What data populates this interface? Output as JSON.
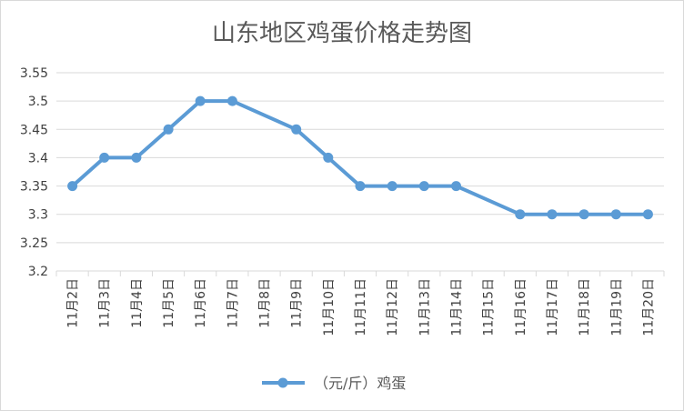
{
  "chart_data": {
    "type": "line",
    "title": "山东地区鸡蛋价格走势图",
    "categories": [
      "11月2日",
      "11月3日",
      "11月4日",
      "11月5日",
      "11月6日",
      "11月7日",
      "11月8日",
      "11月9日",
      "11月10日",
      "11月11日",
      "11月12日",
      "11月13日",
      "11月14日",
      "11月15日",
      "11月16日",
      "11月17日",
      "11月18日",
      "11月19日",
      "11月20日"
    ],
    "series": [
      {
        "name": "（元/斤）鸡蛋",
        "values": [
          3.35,
          3.4,
          3.4,
          3.45,
          3.5,
          3.5,
          null,
          3.45,
          3.4,
          3.35,
          3.35,
          3.35,
          3.35,
          null,
          3.3,
          3.3,
          3.3,
          3.3,
          3.3
        ],
        "color": "#5b9bd5"
      }
    ],
    "ylim": [
      3.2,
      3.55
    ],
    "yticks": [
      "3.2",
      "3.25",
      "3.3",
      "3.35",
      "3.4",
      "3.45",
      "3.5",
      "3.55"
    ],
    "xlabel": "",
    "ylabel": "",
    "grid": true,
    "legend": "bottom",
    "colors": {
      "grid": "#d9d9d9",
      "axis": "#d9d9d9"
    }
  }
}
